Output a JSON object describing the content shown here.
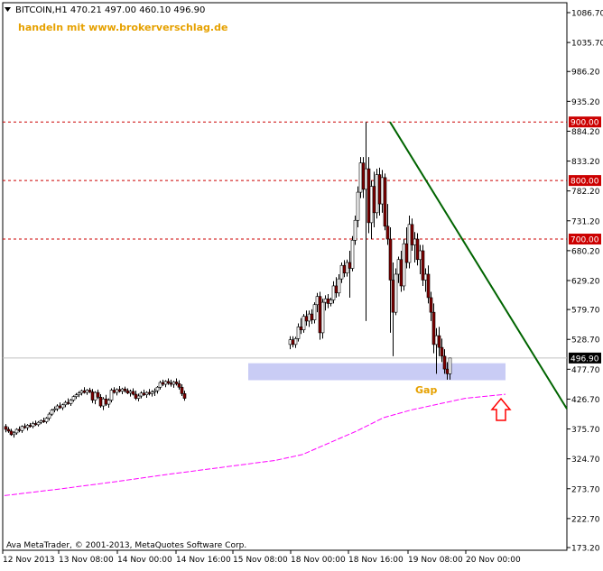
{
  "header": {
    "symbol_line": "BITCOIN,H1  470.21 497.00 460.10 496.90",
    "promo": "handeln mit www.brokerverschlag.de"
  },
  "footer": {
    "copyright": "Ava MetaTrader, © 2001-2013, MetaQuotes Software Corp."
  },
  "annotations": {
    "gap_label": "Gap"
  },
  "colors": {
    "bull": "#ffffff",
    "bear": "#800000",
    "wick": "#000000",
    "grid": "#c0c0c0",
    "level_line": "#cc0000",
    "level_tag_bg": "#cc0000",
    "trendline": "#006400",
    "ma": "#ff00ff",
    "gap_box": "#c9ccf5",
    "gap_text": "#e6a100",
    "promo_text": "#e6a100",
    "arrow": "#ff0000",
    "current_price_tag_bg": "#000000"
  },
  "chart_data": {
    "type": "candlestick",
    "timeframe": "H1",
    "symbol": "BITCOIN",
    "ohlc_current": {
      "open": 470.21,
      "high": 497.0,
      "low": 460.1,
      "close": 496.9
    },
    "ylim": [
      173.2,
      1086.7
    ],
    "y_ticks": [
      "1086.70",
      "1035.70",
      "986.20",
      "935.20",
      "884.20",
      "833.20",
      "782.20",
      "731.20",
      "680.20",
      "629.20",
      "579.70",
      "528.70",
      "477.70",
      "426.70",
      "375.70",
      "324.70",
      "273.70",
      "222.70",
      "173.20"
    ],
    "x_ticks": [
      "12 Nov 2013",
      "13 Nov 08:00",
      "14 Nov 00:00",
      "14 Nov 16:00",
      "15 Nov 08:00",
      "18 Nov 00:00",
      "18 Nov 16:00",
      "19 Nov 08:00",
      "20 Nov 00:00"
    ],
    "horizontal_levels": [
      {
        "label": "900.00",
        "value": 900.0
      },
      {
        "label": "800.00",
        "value": 800.0
      },
      {
        "label": "700.00",
        "value": 700.0
      }
    ],
    "current_price": {
      "label": "496.90",
      "value": 496.9
    },
    "trendline": {
      "from": {
        "bar": 142,
        "value": 900
      },
      "to": {
        "bar": 206,
        "value": 410
      }
    },
    "gap_zone": {
      "from_bar": 90,
      "to_bar": 185,
      "low": 459,
      "high": 488
    },
    "moving_average": [
      {
        "bar": 0,
        "value": 262
      },
      {
        "bar": 20,
        "value": 273
      },
      {
        "bar": 40,
        "value": 285
      },
      {
        "bar": 60,
        "value": 298
      },
      {
        "bar": 80,
        "value": 310
      },
      {
        "bar": 100,
        "value": 322
      },
      {
        "bar": 110,
        "value": 332
      },
      {
        "bar": 120,
        "value": 352
      },
      {
        "bar": 130,
        "value": 372
      },
      {
        "bar": 140,
        "value": 395
      },
      {
        "bar": 150,
        "value": 408
      },
      {
        "bar": 160,
        "value": 418
      },
      {
        "bar": 170,
        "value": 428
      },
      {
        "bar": 185,
        "value": 435
      }
    ],
    "candles": [
      [
        380,
        384,
        370,
        375
      ],
      [
        375,
        379,
        369,
        372
      ],
      [
        372,
        376,
        364,
        366
      ],
      [
        366,
        372,
        361,
        369
      ],
      [
        369,
        377,
        366,
        375
      ],
      [
        375,
        380,
        370,
        373
      ],
      [
        373,
        382,
        369,
        380
      ],
      [
        380,
        385,
        376,
        378
      ],
      [
        378,
        384,
        373,
        382
      ],
      [
        382,
        386,
        378,
        380
      ],
      [
        380,
        388,
        377,
        385
      ],
      [
        385,
        390,
        381,
        383
      ],
      [
        383,
        389,
        380,
        387
      ],
      [
        387,
        392,
        384,
        390
      ],
      [
        390,
        395,
        386,
        388
      ],
      [
        388,
        396,
        385,
        394
      ],
      [
        394,
        404,
        390,
        401
      ],
      [
        401,
        410,
        398,
        408
      ],
      [
        408,
        414,
        404,
        410
      ],
      [
        410,
        418,
        406,
        415
      ],
      [
        415,
        421,
        410,
        412
      ],
      [
        412,
        419,
        408,
        417
      ],
      [
        417,
        424,
        413,
        421
      ],
      [
        421,
        428,
        417,
        419
      ],
      [
        419,
        427,
        415,
        425
      ],
      [
        425,
        433,
        422,
        431
      ],
      [
        431,
        437,
        427,
        434
      ],
      [
        434,
        440,
        430,
        437
      ],
      [
        437,
        443,
        433,
        441
      ],
      [
        441,
        447,
        436,
        438
      ],
      [
        438,
        444,
        434,
        442
      ],
      [
        442,
        446,
        437,
        439
      ],
      [
        439,
        444,
        420,
        425
      ],
      [
        425,
        440,
        418,
        438
      ],
      [
        438,
        443,
        427,
        430
      ],
      [
        430,
        435,
        412,
        415
      ],
      [
        415,
        430,
        408,
        427
      ],
      [
        427,
        434,
        415,
        418
      ],
      [
        418,
        428,
        412,
        425
      ],
      [
        425,
        445,
        421,
        442
      ],
      [
        442,
        447,
        436,
        438
      ],
      [
        438,
        445,
        433,
        443
      ],
      [
        443,
        449,
        438,
        440
      ],
      [
        440,
        446,
        435,
        444
      ],
      [
        444,
        448,
        438,
        441
      ],
      [
        441,
        445,
        435,
        437
      ],
      [
        437,
        443,
        431,
        440
      ],
      [
        440,
        445,
        433,
        435
      ],
      [
        435,
        441,
        425,
        428
      ],
      [
        428,
        436,
        423,
        432
      ],
      [
        432,
        440,
        428,
        437
      ],
      [
        437,
        443,
        432,
        434
      ],
      [
        434,
        440,
        429,
        438
      ],
      [
        438,
        444,
        433,
        436
      ],
      [
        436,
        442,
        431,
        439
      ],
      [
        439,
        445,
        432,
        441
      ],
      [
        441,
        449,
        436,
        447
      ],
      [
        447,
        458,
        443,
        455
      ],
      [
        455,
        460,
        449,
        452
      ],
      [
        452,
        459,
        447,
        457
      ],
      [
        457,
        462,
        451,
        454
      ],
      [
        454,
        460,
        448,
        452
      ],
      [
        452,
        458,
        446,
        456
      ],
      [
        456,
        462,
        450,
        453
      ],
      [
        453,
        459,
        443,
        447
      ],
      [
        447,
        452,
        432,
        436
      ],
      [
        436,
        441,
        424,
        428
      ],
      [
        520,
        534,
        512,
        528
      ],
      [
        528,
        534,
        515,
        520
      ],
      [
        520,
        533,
        514,
        530
      ],
      [
        530,
        556,
        525,
        550
      ],
      [
        550,
        565,
        538,
        545
      ],
      [
        545,
        572,
        540,
        568
      ],
      [
        568,
        578,
        552,
        560
      ],
      [
        560,
        578,
        550,
        572
      ],
      [
        572,
        580,
        555,
        562
      ],
      [
        562,
        592,
        556,
        588
      ],
      [
        588,
        608,
        575,
        602
      ],
      [
        602,
        610,
        528,
        540
      ],
      [
        540,
        598,
        530,
        592
      ],
      [
        592,
        604,
        578,
        598
      ],
      [
        598,
        606,
        582,
        590
      ],
      [
        590,
        600,
        585,
        596
      ],
      [
        596,
        628,
        590,
        620
      ],
      [
        620,
        635,
        600,
        608
      ],
      [
        608,
        640,
        602,
        632
      ],
      [
        632,
        660,
        625,
        655
      ],
      [
        655,
        664,
        635,
        642
      ],
      [
        642,
        665,
        636,
        660
      ],
      [
        660,
        680,
        600,
        650
      ],
      [
        650,
        705,
        645,
        698
      ],
      [
        698,
        740,
        690,
        732
      ],
      [
        732,
        790,
        720,
        780
      ],
      [
        780,
        840,
        770,
        830
      ],
      [
        830,
        840,
        770,
        785
      ],
      [
        785,
        900,
        560,
        820
      ],
      [
        820,
        840,
        710,
        728
      ],
      [
        728,
        800,
        700,
        790
      ],
      [
        790,
        815,
        720,
        745
      ],
      [
        745,
        820,
        735,
        810
      ],
      [
        810,
        822,
        740,
        760
      ],
      [
        760,
        818,
        745,
        805
      ],
      [
        805,
        812,
        715,
        722
      ],
      [
        722,
        760,
        690,
        700
      ],
      [
        700,
        720,
        540,
        630
      ],
      [
        630,
        660,
        500,
        575
      ],
      [
        575,
        650,
        570,
        640
      ],
      [
        640,
        670,
        625,
        665
      ],
      [
        665,
        680,
        610,
        620
      ],
      [
        620,
        700,
        612,
        692
      ],
      [
        692,
        720,
        650,
        660
      ],
      [
        660,
        740,
        650,
        725
      ],
      [
        725,
        735,
        680,
        690
      ],
      [
        690,
        712,
        660,
        700
      ],
      [
        700,
        710,
        655,
        665
      ],
      [
        665,
        690,
        640,
        680
      ],
      [
        680,
        690,
        620,
        630
      ],
      [
        630,
        650,
        610,
        640
      ],
      [
        640,
        655,
        590,
        600
      ],
      [
        600,
        610,
        560,
        575
      ],
      [
        575,
        590,
        505,
        520
      ],
      [
        520,
        548,
        470,
        535
      ],
      [
        535,
        550,
        500,
        515
      ],
      [
        515,
        530,
        490,
        500
      ],
      [
        500,
        512,
        470,
        478
      ],
      [
        478,
        490,
        460,
        470
      ],
      [
        470,
        497,
        460,
        496.9
      ]
    ]
  }
}
